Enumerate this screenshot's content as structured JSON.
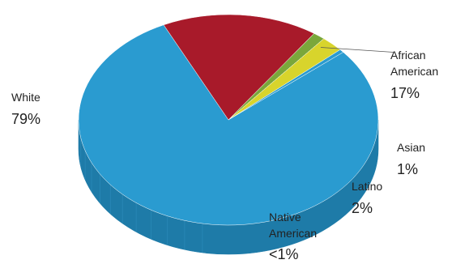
{
  "chart_data": {
    "type": "pie",
    "style": "3d",
    "slices": [
      {
        "name": "White",
        "display": "79%",
        "value": 79.0,
        "color": "#2a9bd0",
        "side_color": "#1e7ba8"
      },
      {
        "name": "African American",
        "display": "17%",
        "value": 16.8,
        "color": "#a81a2a",
        "side_color": "#7d1320"
      },
      {
        "name": "Asian",
        "display": "1%",
        "value": 1.3,
        "color": "#7aa73b",
        "side_color": "#5a7f2a"
      },
      {
        "name": "Latino",
        "display": "2%",
        "value": 2.4,
        "color": "#d8d42c",
        "side_color": "#aca81f"
      },
      {
        "name": "Native American",
        "display": "<1%",
        "value": 0.5,
        "color": "#2a9bd0",
        "side_color": "#1e7ba8"
      }
    ],
    "labels": [
      {
        "lines": [
          "White"
        ],
        "value": "79%"
      },
      {
        "lines": [
          "African",
          "American"
        ],
        "value": "17%"
      },
      {
        "lines": [
          "Asian"
        ],
        "value": "1%"
      },
      {
        "lines": [
          "Latino"
        ],
        "value": "2%"
      },
      {
        "lines": [
          "Native",
          "American"
        ],
        "value": "<1%"
      }
    ]
  }
}
